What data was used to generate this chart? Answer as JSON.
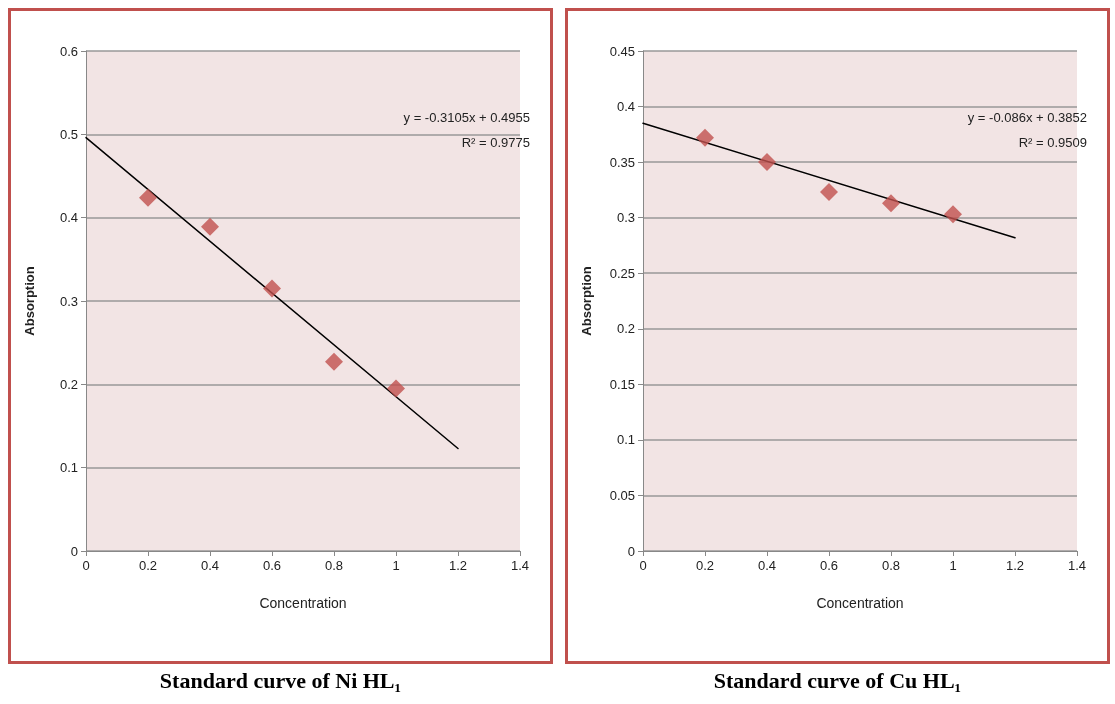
{
  "chart_data": [
    {
      "type": "scatter",
      "title": "Standard curve of Ni HL₁",
      "xlabel": "Concentration",
      "ylabel": "Absorption",
      "annotations": [
        "y = -0.3105x + 0.4955",
        "R² = 0.9775"
      ],
      "xlim": [
        0,
        1.4
      ],
      "xticks": [
        0,
        0.2,
        0.4,
        0.6,
        0.8,
        1,
        1.2,
        1.4
      ],
      "ylim": [
        0,
        0.6
      ],
      "yticks": [
        0,
        0.1,
        0.2,
        0.3,
        0.4,
        0.5,
        0.6
      ],
      "grid": "y",
      "series": [
        {
          "marker": "diamond",
          "color": "#c0504d",
          "x": [
            0.2,
            0.4,
            0.6,
            0.8,
            1
          ],
          "values": [
            0.424,
            0.389,
            0.315,
            0.227,
            0.195
          ]
        },
        {
          "type": "line",
          "marker": "none",
          "color": "#000000",
          "x": [
            0,
            1.2
          ],
          "values": [
            0.496,
            0.123
          ]
        }
      ]
    },
    {
      "type": "scatter",
      "title": "Standard curve of Cu HL₁",
      "xlabel": "Concentration",
      "ylabel": "Absorption",
      "annotations": [
        "y = -0.086x + 0.3852",
        "R² = 0.9509"
      ],
      "xlim": [
        0,
        1.4
      ],
      "xticks": [
        0,
        0.2,
        0.4,
        0.6,
        0.8,
        1,
        1.2,
        1.4
      ],
      "ylim": [
        0,
        0.45
      ],
      "yticks": [
        0,
        0.05,
        0.1,
        0.15,
        0.2,
        0.25,
        0.3,
        0.35,
        0.4,
        0.45
      ],
      "grid": "y",
      "series": [
        {
          "marker": "diamond",
          "color": "#c0504d",
          "x": [
            0.2,
            0.4,
            0.6,
            0.8,
            1
          ],
          "values": [
            0.372,
            0.35,
            0.323,
            0.313,
            0.303
          ]
        },
        {
          "type": "line",
          "marker": "none",
          "color": "#000000",
          "x": [
            0,
            1.2
          ],
          "values": [
            0.385,
            0.282
          ]
        }
      ]
    }
  ]
}
